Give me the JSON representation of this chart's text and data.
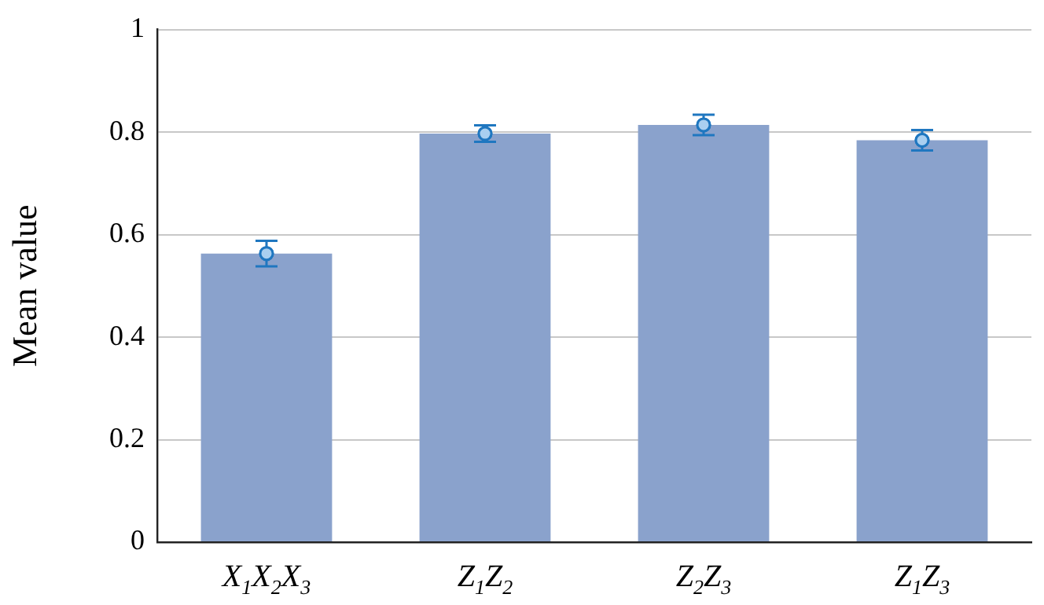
{
  "chart_data": {
    "type": "bar",
    "ylabel": "Mean value",
    "categories": [
      "X$_{1}$X$_{2}$X$_{3}$",
      "Z$_{1}$Z$_{2}$",
      "Z$_{2}$Z$_{3}$",
      "Z$_{1}$Z$_{3}$"
    ],
    "series": [
      {
        "color": "#8aa2cc",
        "values": [
          0.563,
          0.797,
          0.814,
          0.784
        ]
      },
      {
        "type": "scatter",
        "color": "#1f77c0",
        "values": [
          0.563,
          0.797,
          0.814,
          0.784
        ],
        "errors": [
          0.025,
          0.016,
          0.02,
          0.02
        ]
      }
    ],
    "marker": "circle",
    "ylim": [
      0,
      1
    ],
    "yticks": [
      0,
      0.2,
      0.4,
      0.6,
      0.8,
      1
    ],
    "grid": "y",
    "legend": false
  }
}
